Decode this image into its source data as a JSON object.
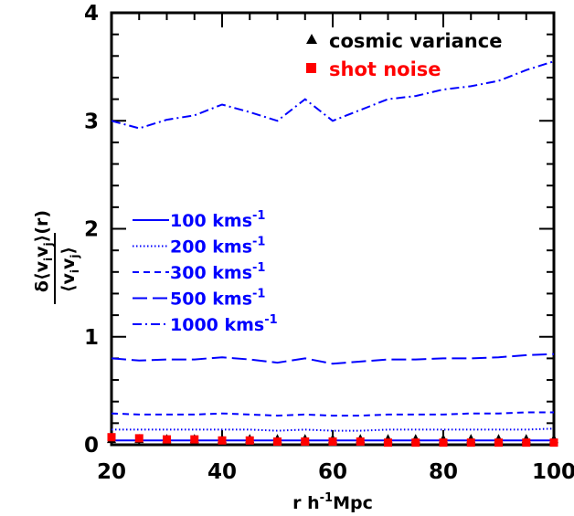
{
  "chart_data": {
    "type": "line",
    "xlabel_main": "r h",
    "xlabel_sup": "-1",
    "xlabel_tail": "Mpc",
    "ylabel_num_prefix": "δ⟨v",
    "ylabel_num_i": "i",
    "ylabel_num_v": "v",
    "ylabel_num_j": "j",
    "ylabel_num_suffix": "⟩(r)",
    "ylabel_den_prefix": "⟨v",
    "ylabel_den_i": "i",
    "ylabel_den_v": "v",
    "ylabel_den_j": "j",
    "ylabel_den_suffix": "⟩",
    "xlim": [
      20,
      100
    ],
    "ylim": [
      0,
      4
    ],
    "xticks": [
      "20",
      "40",
      "60",
      "80",
      "100"
    ],
    "yticks": [
      "0",
      "1",
      "2",
      "3",
      "4"
    ],
    "x": [
      20,
      25,
      30,
      35,
      40,
      45,
      50,
      55,
      60,
      65,
      70,
      75,
      80,
      85,
      90,
      95,
      100
    ],
    "series": [
      {
        "name": "100 kms",
        "sup": "-1",
        "dash": "",
        "color": "#0000ff",
        "values": [
          0.04,
          0.04,
          0.04,
          0.04,
          0.04,
          0.04,
          0.04,
          0.04,
          0.04,
          0.04,
          0.04,
          0.04,
          0.04,
          0.04,
          0.04,
          0.04,
          0.04
        ]
      },
      {
        "name": "200 kms",
        "sup": "-1",
        "dash": "1.5,2.5",
        "color": "#0000ff",
        "values": [
          0.14,
          0.14,
          0.14,
          0.14,
          0.14,
          0.14,
          0.13,
          0.14,
          0.13,
          0.13,
          0.14,
          0.14,
          0.14,
          0.14,
          0.14,
          0.14,
          0.15
        ]
      },
      {
        "name": "300 kms",
        "sup": "-1",
        "dash": "7,5",
        "color": "#0000ff",
        "values": [
          0.29,
          0.28,
          0.28,
          0.28,
          0.29,
          0.28,
          0.27,
          0.28,
          0.27,
          0.27,
          0.28,
          0.28,
          0.28,
          0.29,
          0.29,
          0.3,
          0.3
        ]
      },
      {
        "name": "500 kms",
        "sup": "-1",
        "dash": "16,6",
        "color": "#0000ff",
        "values": [
          0.8,
          0.78,
          0.79,
          0.79,
          0.81,
          0.79,
          0.76,
          0.8,
          0.75,
          0.77,
          0.79,
          0.79,
          0.8,
          0.8,
          0.81,
          0.83,
          0.84
        ]
      },
      {
        "name": "1000 kms",
        "sup": "-1",
        "dash": "10,4,2,4",
        "color": "#0000ff",
        "values": [
          3.0,
          2.93,
          3.01,
          3.05,
          3.15,
          3.08,
          3.0,
          3.2,
          3.0,
          3.1,
          3.2,
          3.23,
          3.29,
          3.32,
          3.37,
          3.47,
          3.55
        ]
      }
    ],
    "markers": [
      {
        "name": "cosmic variance",
        "shape": "triangle",
        "color": "#000000",
        "values": [
          0.05,
          0.05,
          0.05,
          0.05,
          0.05,
          0.05,
          0.05,
          0.05,
          0.05,
          0.05,
          0.05,
          0.05,
          0.05,
          0.05,
          0.05,
          0.05,
          0.05
        ]
      },
      {
        "name": "shot noise",
        "shape": "square",
        "color": "#ff0000",
        "values": [
          0.07,
          0.06,
          0.05,
          0.05,
          0.04,
          0.04,
          0.03,
          0.03,
          0.03,
          0.03,
          0.02,
          0.02,
          0.02,
          0.02,
          0.02,
          0.02,
          0.02
        ]
      }
    ],
    "grid": false,
    "legend_position": "left-middle",
    "marker_legend_position": "top-right"
  }
}
